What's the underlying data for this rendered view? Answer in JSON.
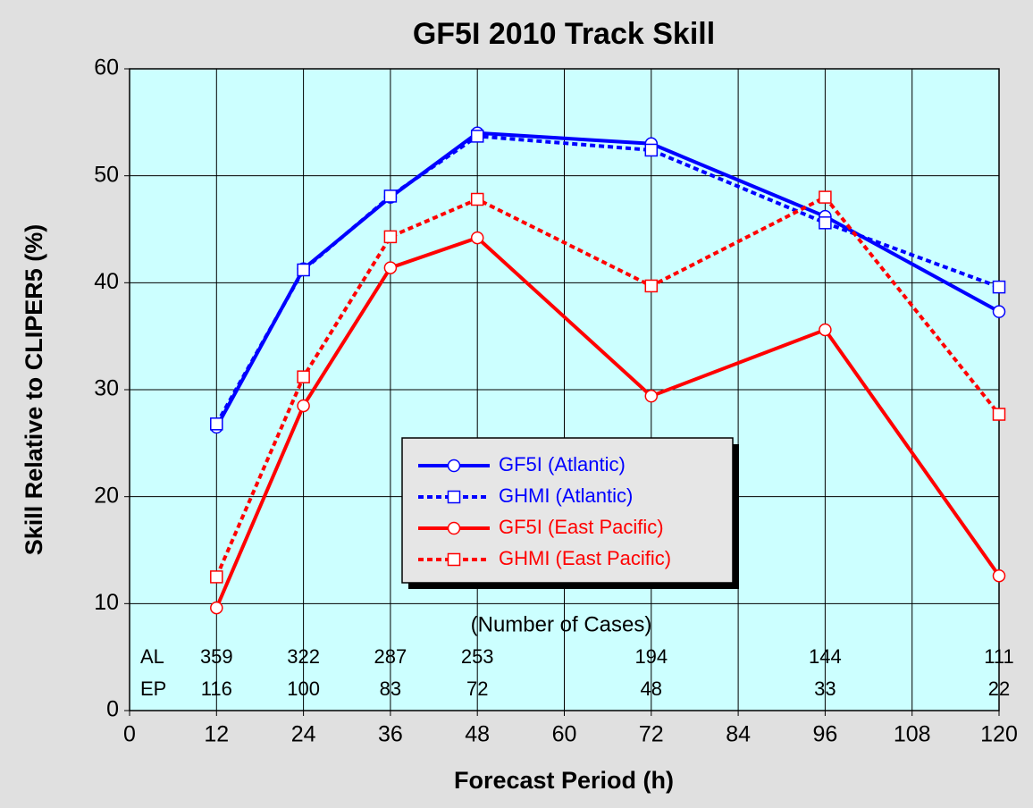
{
  "chart_data": {
    "type": "line",
    "title": "GF5I 2010 Track Skill",
    "x_label": "Forecast Period (h)",
    "y_label": "Skill Relative to CLIPER5 (%)",
    "x": [
      12,
      24,
      36,
      48,
      72,
      96,
      120
    ],
    "series": [
      {
        "name": "GF5I (Atlantic)",
        "color": "#0000ff",
        "dash": false,
        "marker": "circle",
        "values": [
          26.5,
          41.3,
          48,
          54,
          53,
          46.2,
          37.3
        ]
      },
      {
        "name": "GHMI (Atlantic)",
        "color": "#0000ff",
        "dash": true,
        "marker": "square",
        "values": [
          26.8,
          41.2,
          48.1,
          53.7,
          52.4,
          45.6,
          39.6
        ]
      },
      {
        "name": "GF5I (East Pacific)",
        "color": "#ff0000",
        "dash": false,
        "marker": "circle",
        "values": [
          9.6,
          28.5,
          41.4,
          44.2,
          29.4,
          35.6,
          12.6
        ]
      },
      {
        "name": "GHMI (East Pacific)",
        "color": "#ff0000",
        "dash": true,
        "marker": "square",
        "values": [
          12.5,
          31.2,
          44.3,
          47.8,
          39.7,
          48,
          27.7
        ]
      }
    ],
    "case_counts": {
      "title": "(Number of Cases)",
      "rows": [
        {
          "label": "AL",
          "values": [
            359,
            322,
            287,
            253,
            194,
            144,
            111
          ]
        },
        {
          "label": "EP",
          "values": [
            116,
            100,
            83,
            72,
            48,
            33,
            22
          ]
        }
      ]
    },
    "xlim": [
      0,
      120
    ],
    "xticks": [
      0,
      12,
      24,
      36,
      48,
      60,
      72,
      84,
      96,
      108,
      120
    ],
    "ylim": [
      0,
      60
    ],
    "yticks": [
      0,
      10,
      20,
      30,
      40,
      50,
      60
    ],
    "grid": true,
    "plot_background": "#ccffff"
  }
}
